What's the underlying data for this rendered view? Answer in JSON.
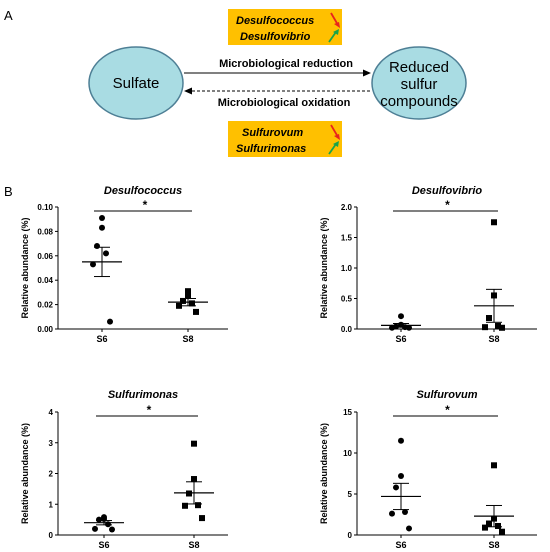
{
  "panel_a": {
    "label": "A",
    "left_node": "Sulfate",
    "right_node_lines": [
      "Reduced",
      "sulfur",
      "compounds"
    ],
    "reduction_label": "Microbiological reduction",
    "oxidation_label": "Microbiological oxidation",
    "reducers": [
      {
        "name": "Desulfococcus",
        "trend": "down"
      },
      {
        "name": "Desulfovibrio",
        "trend": "up"
      }
    ],
    "oxidizers": [
      {
        "name": "Sulfurovum",
        "trend": "down"
      },
      {
        "name": "Sulfurimonas",
        "trend": "up"
      }
    ],
    "colors": {
      "node_fill": "#a9dce3",
      "node_stroke": "#4e7f95",
      "tag_fill": "#ffc000",
      "down_arrow": "#e8231d",
      "up_arrow": "#19a34a"
    }
  },
  "panel_b": {
    "label": "B"
  },
  "chart_data": [
    {
      "type": "scatter",
      "title": "Desulfococcus",
      "ylabel": "Relative abundance (%)",
      "categories": [
        "S6",
        "S8"
      ],
      "ylim": [
        0,
        0.1
      ],
      "yticks": [
        "0.00",
        "0.02",
        "0.04",
        "0.06",
        "0.08",
        "0.10"
      ],
      "significance": "*",
      "series": [
        {
          "name": "S6",
          "marker": "circle",
          "values": [
            0.091,
            0.083,
            0.068,
            0.062,
            0.053,
            0.006
          ],
          "mean": 0.055,
          "sem": 0.012
        },
        {
          "name": "S8",
          "marker": "square",
          "values": [
            0.031,
            0.027,
            0.023,
            0.021,
            0.019,
            0.014
          ],
          "mean": 0.022,
          "sem": 0.003
        }
      ]
    },
    {
      "type": "scatter",
      "title": "Desulfovibrio",
      "ylabel": "Relative abundance (%)",
      "categories": [
        "S6",
        "S8"
      ],
      "ylim": [
        0,
        2.0
      ],
      "yticks": [
        "0.0",
        "0.5",
        "1.0",
        "1.5",
        "2.0"
      ],
      "significance": "*",
      "series": [
        {
          "name": "S6",
          "marker": "circle",
          "values": [
            0.21,
            0.07,
            0.04,
            0.03,
            0.02,
            0.02
          ],
          "mean": 0.06,
          "sem": 0.03
        },
        {
          "name": "S8",
          "marker": "square",
          "values": [
            1.75,
            0.55,
            0.18,
            0.05,
            0.03,
            0.02
          ],
          "mean": 0.38,
          "sem": 0.27
        }
      ]
    },
    {
      "type": "scatter",
      "title": "Sulfurimonas",
      "ylabel": "Relative abundance (%)",
      "categories": [
        "S6",
        "S8"
      ],
      "ylim": [
        0,
        4
      ],
      "yticks": [
        "0",
        "1",
        "2",
        "3",
        "4"
      ],
      "significance": "*",
      "series": [
        {
          "name": "S6",
          "marker": "circle",
          "values": [
            0.58,
            0.52,
            0.5,
            0.35,
            0.2,
            0.18
          ],
          "mean": 0.4,
          "sem": 0.07
        },
        {
          "name": "S8",
          "marker": "square",
          "values": [
            2.97,
            1.82,
            1.35,
            0.97,
            0.95,
            0.55
          ],
          "mean": 1.37,
          "sem": 0.36
        }
      ]
    },
    {
      "type": "scatter",
      "title": "Sulfurovum",
      "ylabel": "Relative abundance (%)",
      "categories": [
        "S6",
        "S8"
      ],
      "ylim": [
        0,
        15
      ],
      "yticks": [
        "0",
        "5",
        "10",
        "15"
      ],
      "significance": "*",
      "series": [
        {
          "name": "S6",
          "marker": "circle",
          "values": [
            11.5,
            7.2,
            5.8,
            2.8,
            2.6,
            0.8
          ],
          "mean": 4.7,
          "sem": 1.6
        },
        {
          "name": "S8",
          "marker": "square",
          "values": [
            8.5,
            2.0,
            1.4,
            1.1,
            0.9,
            0.4
          ],
          "mean": 2.3,
          "sem": 1.3
        }
      ]
    }
  ]
}
